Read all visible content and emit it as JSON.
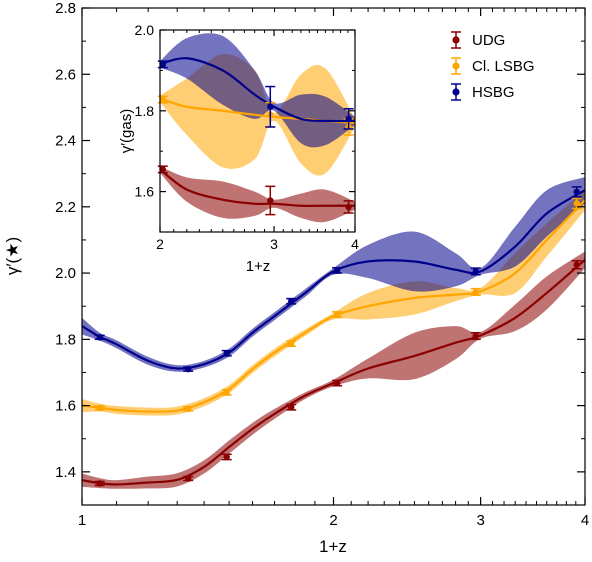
{
  "chart_data": {
    "main": {
      "type": "line",
      "xlabel": "1+z",
      "ylabel": "γ′(★)",
      "xscale": "log",
      "xlim": [
        1,
        4
      ],
      "ylim": [
        1.3,
        2.8
      ],
      "xticks": [
        1,
        2,
        3,
        4
      ],
      "yticks": [
        1.4,
        1.6,
        1.8,
        2.0,
        2.2,
        2.4,
        2.6,
        2.8
      ],
      "xtick_labels": [
        "1",
        "2",
        "3",
        "4"
      ],
      "ytick_labels": [
        "1.4",
        "1.6",
        "1.8",
        "2.0",
        "2.2",
        "2.4",
        "2.6",
        "2.8"
      ],
      "legend_position": "top-right",
      "series": [
        {
          "name": "UDG",
          "color": "#8b0000",
          "curve": [
            [
              1.0,
              1.375
            ],
            [
              1.05,
              1.366
            ],
            [
              1.1,
              1.362
            ],
            [
              1.2,
              1.368
            ],
            [
              1.3,
              1.376
            ],
            [
              1.4,
              1.415
            ],
            [
              1.5,
              1.475
            ],
            [
              1.6,
              1.53
            ],
            [
              1.7,
              1.575
            ],
            [
              1.85,
              1.63
            ],
            [
              2.0,
              1.668
            ],
            [
              2.2,
              1.712
            ],
            [
              2.5,
              1.75
            ],
            [
              2.8,
              1.79
            ],
            [
              3.0,
              1.812
            ],
            [
              3.3,
              1.865
            ],
            [
              3.6,
              1.94
            ],
            [
              4.0,
              2.04
            ]
          ],
          "band_width": [
            0.02,
            0.015,
            0.013,
            0.018,
            0.02,
            0.02,
            0.02,
            0.018,
            0.015,
            0.01,
            0.01,
            0.03,
            0.07,
            0.05,
            0.01,
            0.04,
            0.05,
            0.025
          ],
          "points": {
            "x": [
              1.05,
              1.34,
              1.49,
              1.78,
              2.02,
              2.96,
              3.91
            ],
            "y": [
              1.365,
              1.38,
              1.445,
              1.595,
              1.668,
              1.81,
              2.025
            ],
            "err": [
              0.006,
              0.006,
              0.008,
              0.008,
              0.008,
              0.01,
              0.012
            ]
          }
        },
        {
          "name": "Cl. LSBG",
          "color": "#ffa500",
          "curve": [
            [
              1.0,
              1.6
            ],
            [
              1.05,
              1.594
            ],
            [
              1.1,
              1.587
            ],
            [
              1.2,
              1.582
            ],
            [
              1.3,
              1.585
            ],
            [
              1.4,
              1.61
            ],
            [
              1.5,
              1.65
            ],
            [
              1.6,
              1.71
            ],
            [
              1.7,
              1.76
            ],
            [
              1.85,
              1.82
            ],
            [
              2.0,
              1.87
            ],
            [
              2.2,
              1.9
            ],
            [
              2.5,
              1.925
            ],
            [
              2.8,
              1.935
            ],
            [
              3.0,
              1.945
            ],
            [
              3.3,
              2.0
            ],
            [
              3.6,
              2.1
            ],
            [
              4.0,
              2.22
            ]
          ],
          "band_width": [
            0.02,
            0.012,
            0.012,
            0.012,
            0.012,
            0.012,
            0.012,
            0.012,
            0.012,
            0.01,
            0.01,
            0.04,
            0.05,
            0.02,
            0.01,
            0.06,
            0.05,
            0.03
          ],
          "points": {
            "x": [
              1.05,
              1.34,
              1.49,
              1.78,
              2.02,
              2.96,
              3.91
            ],
            "y": [
              1.593,
              1.59,
              1.64,
              1.787,
              1.875,
              1.943,
              2.21
            ],
            "err": [
              0.006,
              0.006,
              0.008,
              0.008,
              0.008,
              0.01,
              0.015
            ]
          }
        },
        {
          "name": "HSBG",
          "color": "#00008b",
          "curve": [
            [
              1.0,
              1.84
            ],
            [
              1.05,
              1.808
            ],
            [
              1.1,
              1.785
            ],
            [
              1.2,
              1.735
            ],
            [
              1.3,
              1.712
            ],
            [
              1.4,
              1.725
            ],
            [
              1.5,
              1.76
            ],
            [
              1.6,
              1.82
            ],
            [
              1.7,
              1.87
            ],
            [
              1.85,
              1.94
            ],
            [
              2.0,
              2.005
            ],
            [
              2.2,
              2.035
            ],
            [
              2.5,
              2.035
            ],
            [
              2.8,
              2.01
            ],
            [
              3.0,
              2.005
            ],
            [
              3.3,
              2.08
            ],
            [
              3.6,
              2.18
            ],
            [
              4.0,
              2.25
            ]
          ],
          "band_width": [
            0.025,
            0.012,
            0.012,
            0.012,
            0.01,
            0.01,
            0.012,
            0.012,
            0.012,
            0.012,
            0.01,
            0.05,
            0.09,
            0.05,
            0.01,
            0.06,
            0.07,
            0.04
          ],
          "points": {
            "x": [
              1.05,
              1.34,
              1.49,
              1.78,
              2.02,
              2.96,
              3.91
            ],
            "y": [
              1.806,
              1.71,
              1.758,
              1.915,
              2.008,
              2.005,
              2.245
            ],
            "err": [
              0.006,
              0.006,
              0.008,
              0.008,
              0.008,
              0.01,
              0.015
            ]
          }
        }
      ]
    },
    "inset": {
      "type": "line",
      "xlabel": "1+z",
      "ylabel": "γ′(gas)",
      "xscale": "log",
      "xlim": [
        2,
        4
      ],
      "ylim": [
        1.5,
        2.0
      ],
      "xticks": [
        2,
        3,
        4
      ],
      "yticks": [
        1.6,
        1.8,
        2.0
      ],
      "xtick_labels": [
        "2",
        "3",
        "4"
      ],
      "ytick_labels": [
        "1.6",
        "1.8",
        "2.0"
      ],
      "series": [
        {
          "name": "UDG",
          "color": "#8b0000",
          "curve": [
            [
              2.0,
              1.655
            ],
            [
              2.2,
              1.605
            ],
            [
              2.5,
              1.58
            ],
            [
              2.8,
              1.57
            ],
            [
              3.0,
              1.57
            ],
            [
              3.3,
              1.565
            ],
            [
              3.6,
              1.565
            ],
            [
              4.0,
              1.565
            ]
          ],
          "band_width": [
            0.008,
            0.03,
            0.045,
            0.03,
            0.01,
            0.03,
            0.04,
            0.01
          ],
          "points": {
            "x": [
              2.02,
              2.96,
              3.91
            ],
            "y": [
              1.655,
              1.578,
              1.562
            ],
            "err": [
              0.008,
              0.035,
              0.015
            ]
          }
        },
        {
          "name": "Cl. LSBG",
          "color": "#ffa500",
          "curve": [
            [
              2.0,
              1.83
            ],
            [
              2.2,
              1.81
            ],
            [
              2.5,
              1.8
            ],
            [
              2.8,
              1.79
            ],
            [
              3.0,
              1.785
            ],
            [
              3.3,
              1.78
            ],
            [
              3.6,
              1.775
            ],
            [
              4.0,
              1.77
            ]
          ],
          "band_width": [
            0.008,
            0.07,
            0.14,
            0.11,
            0.01,
            0.11,
            0.13,
            0.01
          ],
          "points": {
            "x": [
              2.02,
              2.96,
              3.91
            ],
            "y": [
              1.828,
              1.79,
              1.76
            ],
            "err": [
              0.008,
              0.03,
              0.02
            ]
          }
        },
        {
          "name": "HSBG",
          "color": "#00008b",
          "curve": [
            [
              2.0,
              1.915
            ],
            [
              2.2,
              1.93
            ],
            [
              2.5,
              1.9
            ],
            [
              2.8,
              1.84
            ],
            [
              3.0,
              1.81
            ],
            [
              3.3,
              1.78
            ],
            [
              3.6,
              1.775
            ],
            [
              4.0,
              1.775
            ]
          ],
          "band_width": [
            0.008,
            0.05,
            0.085,
            0.06,
            0.01,
            0.06,
            0.06,
            0.01
          ],
          "points": {
            "x": [
              2.02,
              2.96,
              3.91
            ],
            "y": [
              1.915,
              1.81,
              1.78
            ],
            "err": [
              0.008,
              0.05,
              0.025
            ]
          }
        }
      ]
    }
  }
}
